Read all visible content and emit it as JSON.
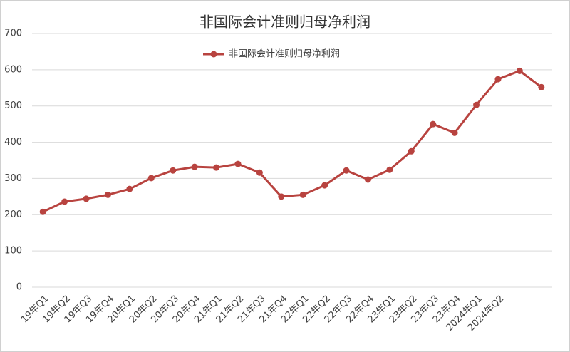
{
  "chart_data": {
    "type": "line",
    "title": "非国际会计准则归母净利润",
    "categories": [
      "19年Q1",
      "19年Q2",
      "19年Q3",
      "19年Q4",
      "20年Q1",
      "20年Q2",
      "20年Q3",
      "20年Q4",
      "21年Q1",
      "21年Q2",
      "21年Q3",
      "21年Q4",
      "22年Q1",
      "22年Q2",
      "22年Q3",
      "22年Q4",
      "23年Q1",
      "23年Q2",
      "23年Q3",
      "23年Q4",
      "2024年Q1",
      "2024年Q2",
      null,
      null
    ],
    "series": [
      {
        "name": "非国际会计准则归母净利润",
        "color": "#b8433f",
        "values": [
          208,
          236,
          244,
          255,
          271,
          301,
          322,
          332,
          330,
          340,
          316,
          250,
          255,
          281,
          322,
          297,
          324,
          375,
          450,
          426,
          503,
          574,
          597,
          552
        ]
      }
    ],
    "ylim": [
      0,
      700
    ],
    "yticks": [
      0,
      100,
      200,
      300,
      400,
      500,
      600,
      700
    ],
    "grid": true,
    "legend": "top"
  }
}
